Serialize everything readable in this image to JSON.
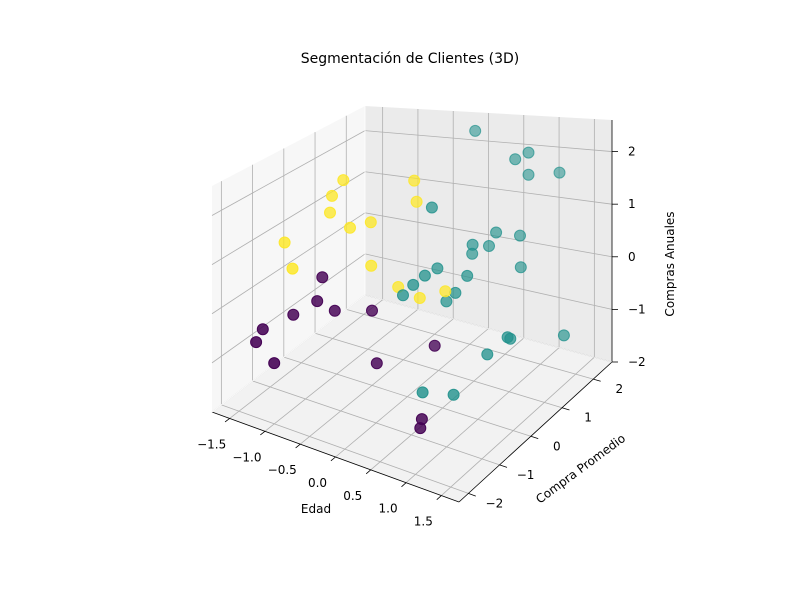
{
  "chart_data": {
    "type": "scatter",
    "projection": "3d",
    "title": "Segmentación de Clientes (3D)",
    "xlabel": "Edad",
    "ylabel": "Compra Promedio",
    "zlabel": "Compras Anuales",
    "xlim": [
      -1.75,
      1.75
    ],
    "ylim": [
      -2.3,
      2.6
    ],
    "zlim": [
      -2.0,
      2.6
    ],
    "x_ticks": [
      -1.5,
      -1.0,
      -0.5,
      0.0,
      0.5,
      1.0,
      1.5
    ],
    "x_tick_labels": [
      "−1.5",
      "−1.0",
      "−0.5",
      "0.0",
      "0.5",
      "1.0",
      "1.5"
    ],
    "y_ticks": [
      -2,
      -1,
      0,
      1,
      2
    ],
    "y_tick_labels": [
      "−2",
      "−1",
      "0",
      "1",
      "2"
    ],
    "z_ticks": [
      -2,
      -1,
      0,
      1,
      2
    ],
    "z_tick_labels": [
      "−2",
      "−1",
      "0",
      "1",
      "2"
    ],
    "grid": true,
    "colors": {
      "cluster_0": "#440154",
      "cluster_1": "#21918c",
      "cluster_2": "#fde725"
    },
    "series": [
      {
        "cluster": 0,
        "color": "#440154",
        "points": [
          [
            -1.05,
            -0.35,
            0.2
          ],
          [
            -1.1,
            -0.4,
            -0.3
          ],
          [
            -0.85,
            -0.4,
            -0.4
          ],
          [
            -0.5,
            0.0,
            -0.45
          ],
          [
            -1.35,
            -0.6,
            -0.6
          ],
          [
            -1.65,
            -0.9,
            -0.9
          ],
          [
            -1.7,
            -1.0,
            -1.15
          ],
          [
            -1.4,
            -1.1,
            -1.4
          ],
          [
            -0.3,
            -0.3,
            -1.3
          ],
          [
            0.3,
            0.2,
            -0.95
          ],
          [
            0.45,
            -0.55,
            -1.95
          ],
          [
            0.45,
            -0.6,
            -2.1
          ]
        ]
      },
      {
        "cluster": 1,
        "color": "#21918c",
        "points": [
          [
            -0.1,
            2.4,
            2.3
          ],
          [
            0.6,
            2.1,
            1.95
          ],
          [
            0.7,
            2.3,
            2.0
          ],
          [
            0.7,
            2.3,
            1.55
          ],
          [
            1.05,
            2.5,
            1.55
          ],
          [
            -0.05,
            0.9,
            1.4
          ],
          [
            0.55,
            1.6,
            0.7
          ],
          [
            0.8,
            1.8,
            0.6
          ],
          [
            0.35,
            1.3,
            0.55
          ],
          [
            0.9,
            1.6,
            0.1
          ],
          [
            0.45,
            1.6,
            0.4
          ],
          [
            0.3,
            1.4,
            0.3
          ],
          [
            0.45,
            0.9,
            0.15
          ],
          [
            0.05,
            0.85,
            0.2
          ],
          [
            0.35,
            0.75,
            -0.15
          ],
          [
            -0.05,
            0.3,
            0.1
          ],
          [
            0.05,
            0.45,
            0.25
          ],
          [
            -0.15,
            0.2,
            -0.1
          ],
          [
            0.2,
            0.8,
            -0.4
          ],
          [
            1.15,
            0.7,
            -0.75
          ],
          [
            1.2,
            0.5,
            -0.6
          ],
          [
            1.6,
            1.4,
            -0.9
          ],
          [
            1.0,
            0.3,
            -0.9
          ],
          [
            0.35,
            -0.3,
            -1.6
          ],
          [
            0.7,
            -0.1,
            -1.6
          ]
        ]
      },
      {
        "cluster": 2,
        "color": "#fde725",
        "points": [
          [
            -1.2,
            0.3,
            1.6
          ],
          [
            -1.25,
            0.35,
            1.2
          ],
          [
            -0.9,
            0.2,
            1.05
          ],
          [
            -0.65,
            0.3,
            1.2
          ],
          [
            -1.15,
            0.55,
            1.85
          ],
          [
            -0.3,
            0.9,
            1.9
          ],
          [
            -0.2,
            0.75,
            1.55
          ],
          [
            -1.65,
            -0.2,
            0.65
          ],
          [
            -1.45,
            -0.4,
            0.25
          ],
          [
            -0.6,
            0.2,
            0.35
          ],
          [
            -0.35,
            0.5,
            -0.15
          ],
          [
            0.0,
            0.4,
            -0.2
          ],
          [
            0.25,
            0.65,
            -0.1
          ]
        ]
      }
    ]
  }
}
